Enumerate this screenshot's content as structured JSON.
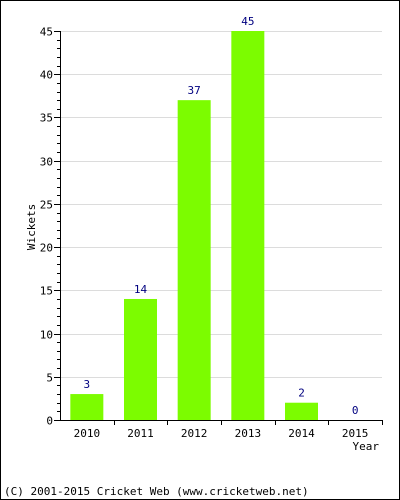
{
  "chart_data": {
    "type": "bar",
    "categories": [
      "2010",
      "2011",
      "2012",
      "2013",
      "2014",
      "2015"
    ],
    "values": [
      3,
      14,
      37,
      45,
      2,
      0
    ],
    "data_labels": [
      "3",
      "14",
      "37",
      "45",
      "2",
      "0"
    ],
    "title": "",
    "xlabel": "Year",
    "ylabel": "Wickets",
    "ylim": [
      0,
      45
    ],
    "yticks": [
      0,
      5,
      10,
      15,
      20,
      25,
      30,
      35,
      40,
      45
    ],
    "grid": true,
    "legend": "none",
    "bar_color": "#7cfc00",
    "label_color": "#000080"
  },
  "footer": {
    "copyright": "(C) 2001-2015 Cricket Web (www.cricketweb.net)"
  }
}
